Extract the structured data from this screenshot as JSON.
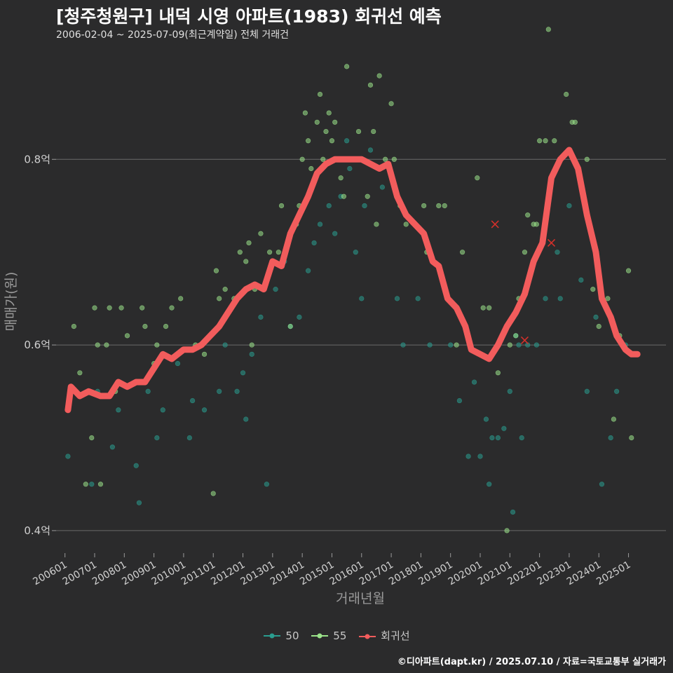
{
  "title": "[청주청원구] 내덕 시영 아파트(1983) 회귀선 예측",
  "subtitle": "2006-02-04 ~ 2025-07-09(최근계약일) 전체 거래건",
  "caption": "©디아파트(dapt.kr) / 2025.07.10 / 자료=국토교통부 실거래가",
  "colors": {
    "s50": "#2a9d8f",
    "s55": "#9be38a",
    "regression": "#f25c5c",
    "grid": "#6a6a6a",
    "outlier": "#d7302a"
  },
  "chart_data": {
    "type": "scatter",
    "xlabel": "거래년월",
    "ylabel": "매매가(원)",
    "xlim": [
      2005.7,
      2026.5
    ],
    "ylim": [
      0.375,
      0.915
    ],
    "y_ticks": [
      0.4,
      0.6,
      0.8
    ],
    "y_tick_labels": [
      "0.4억",
      "0.6억",
      "0.8억"
    ],
    "x_ticks": [
      2006,
      2007,
      2008,
      2009,
      2010,
      2011,
      2012,
      2013,
      2014,
      2015,
      2016,
      2017,
      2018,
      2019,
      2020,
      2021,
      2022,
      2023,
      2024,
      2025
    ],
    "x_tick_labels": [
      "200601",
      "200701",
      "200801",
      "200901",
      "201001",
      "201101",
      "201201",
      "201301",
      "201401",
      "201501",
      "201601",
      "201701",
      "201801",
      "201901",
      "202001",
      "202101",
      "202201",
      "202301",
      "202401",
      "202501"
    ],
    "legend": [
      "50",
      "55",
      "회귀선"
    ],
    "series": [
      {
        "name": "50",
        "points": [
          [
            2006.1,
            0.48
          ],
          [
            2006.9,
            0.45
          ],
          [
            2007.1,
            0.55
          ],
          [
            2007.6,
            0.49
          ],
          [
            2007.8,
            0.53
          ],
          [
            2008.4,
            0.47
          ],
          [
            2008.5,
            0.43
          ],
          [
            2008.8,
            0.55
          ],
          [
            2009.1,
            0.5
          ],
          [
            2009.3,
            0.53
          ],
          [
            2009.8,
            0.58
          ],
          [
            2010.2,
            0.5
          ],
          [
            2010.3,
            0.54
          ],
          [
            2010.7,
            0.53
          ],
          [
            2011.2,
            0.55
          ],
          [
            2011.4,
            0.6
          ],
          [
            2011.8,
            0.55
          ],
          [
            2012.0,
            0.57
          ],
          [
            2012.1,
            0.52
          ],
          [
            2012.3,
            0.59
          ],
          [
            2012.6,
            0.63
          ],
          [
            2012.8,
            0.45
          ],
          [
            2013.1,
            0.66
          ],
          [
            2013.4,
            0.69
          ],
          [
            2013.6,
            0.62
          ],
          [
            2013.9,
            0.63
          ],
          [
            2014.2,
            0.68
          ],
          [
            2014.4,
            0.71
          ],
          [
            2014.6,
            0.73
          ],
          [
            2014.9,
            0.75
          ],
          [
            2015.1,
            0.72
          ],
          [
            2015.3,
            0.76
          ],
          [
            2015.5,
            0.82
          ],
          [
            2015.6,
            0.79
          ],
          [
            2015.8,
            0.7
          ],
          [
            2016.0,
            0.65
          ],
          [
            2016.1,
            0.75
          ],
          [
            2016.3,
            0.81
          ],
          [
            2016.7,
            0.77
          ],
          [
            2017.2,
            0.65
          ],
          [
            2017.4,
            0.6
          ],
          [
            2017.9,
            0.65
          ],
          [
            2018.3,
            0.6
          ],
          [
            2019.0,
            0.6
          ],
          [
            2019.3,
            0.54
          ],
          [
            2019.6,
            0.48
          ],
          [
            2019.8,
            0.56
          ],
          [
            2020.0,
            0.48
          ],
          [
            2020.2,
            0.52
          ],
          [
            2020.3,
            0.45
          ],
          [
            2020.4,
            0.5
          ],
          [
            2020.6,
            0.5
          ],
          [
            2020.8,
            0.51
          ],
          [
            2021.0,
            0.55
          ],
          [
            2021.1,
            0.42
          ],
          [
            2021.2,
            0.61
          ],
          [
            2021.3,
            0.6
          ],
          [
            2021.4,
            0.5
          ],
          [
            2021.6,
            0.6
          ],
          [
            2021.9,
            0.6
          ],
          [
            2022.2,
            0.65
          ],
          [
            2022.6,
            0.7
          ],
          [
            2022.7,
            0.65
          ],
          [
            2023.0,
            0.75
          ],
          [
            2023.4,
            0.67
          ],
          [
            2023.6,
            0.55
          ],
          [
            2023.9,
            0.63
          ],
          [
            2024.1,
            0.45
          ],
          [
            2024.4,
            0.5
          ],
          [
            2024.6,
            0.55
          ],
          [
            2024.9,
            0.6
          ]
        ]
      },
      {
        "name": "55",
        "points": [
          [
            2006.3,
            0.62
          ],
          [
            2006.5,
            0.57
          ],
          [
            2006.7,
            0.45
          ],
          [
            2006.9,
            0.5
          ],
          [
            2007.0,
            0.64
          ],
          [
            2007.1,
            0.6
          ],
          [
            2007.2,
            0.45
          ],
          [
            2007.4,
            0.6
          ],
          [
            2007.5,
            0.64
          ],
          [
            2007.7,
            0.55
          ],
          [
            2007.9,
            0.64
          ],
          [
            2008.1,
            0.61
          ],
          [
            2008.6,
            0.64
          ],
          [
            2008.7,
            0.62
          ],
          [
            2009.0,
            0.58
          ],
          [
            2009.1,
            0.6
          ],
          [
            2009.4,
            0.62
          ],
          [
            2009.6,
            0.64
          ],
          [
            2009.9,
            0.65
          ],
          [
            2010.4,
            0.6
          ],
          [
            2010.7,
            0.59
          ],
          [
            2011.0,
            0.44
          ],
          [
            2011.1,
            0.68
          ],
          [
            2011.2,
            0.65
          ],
          [
            2011.4,
            0.66
          ],
          [
            2011.7,
            0.65
          ],
          [
            2011.9,
            0.7
          ],
          [
            2012.1,
            0.69
          ],
          [
            2012.2,
            0.71
          ],
          [
            2012.3,
            0.6
          ],
          [
            2012.4,
            0.66
          ],
          [
            2012.6,
            0.72
          ],
          [
            2012.9,
            0.7
          ],
          [
            2013.2,
            0.7
          ],
          [
            2013.3,
            0.75
          ],
          [
            2013.6,
            0.62
          ],
          [
            2013.8,
            0.73
          ],
          [
            2013.9,
            0.75
          ],
          [
            2014.0,
            0.8
          ],
          [
            2014.1,
            0.85
          ],
          [
            2014.2,
            0.82
          ],
          [
            2014.3,
            0.79
          ],
          [
            2014.5,
            0.84
          ],
          [
            2014.6,
            0.87
          ],
          [
            2014.7,
            0.8
          ],
          [
            2014.8,
            0.83
          ],
          [
            2014.9,
            0.85
          ],
          [
            2015.0,
            0.82
          ],
          [
            2015.1,
            0.84
          ],
          [
            2015.3,
            0.78
          ],
          [
            2015.4,
            0.76
          ],
          [
            2015.5,
            0.9
          ],
          [
            2015.7,
            0.8
          ],
          [
            2015.9,
            0.83
          ],
          [
            2016.2,
            0.76
          ],
          [
            2016.3,
            0.88
          ],
          [
            2016.4,
            0.83
          ],
          [
            2016.5,
            0.73
          ],
          [
            2016.6,
            0.89
          ],
          [
            2016.8,
            0.8
          ],
          [
            2017.0,
            0.86
          ],
          [
            2017.1,
            0.8
          ],
          [
            2017.3,
            0.75
          ],
          [
            2017.5,
            0.73
          ],
          [
            2017.8,
            0.73
          ],
          [
            2018.1,
            0.75
          ],
          [
            2018.2,
            0.7
          ],
          [
            2018.6,
            0.75
          ],
          [
            2018.8,
            0.75
          ],
          [
            2019.2,
            0.6
          ],
          [
            2019.4,
            0.7
          ],
          [
            2019.9,
            0.78
          ],
          [
            2020.1,
            0.64
          ],
          [
            2020.3,
            0.64
          ],
          [
            2020.6,
            0.57
          ],
          [
            2020.9,
            0.4
          ],
          [
            2021.0,
            0.6
          ],
          [
            2021.2,
            0.61
          ],
          [
            2021.3,
            0.65
          ],
          [
            2021.5,
            0.7
          ],
          [
            2021.6,
            0.74
          ],
          [
            2021.8,
            0.73
          ],
          [
            2021.9,
            0.73
          ],
          [
            2022.0,
            0.82
          ],
          [
            2022.2,
            0.82
          ],
          [
            2022.3,
            0.94
          ],
          [
            2022.5,
            0.82
          ],
          [
            2022.9,
            0.87
          ],
          [
            2023.1,
            0.84
          ],
          [
            2023.2,
            0.84
          ],
          [
            2023.6,
            0.8
          ],
          [
            2023.8,
            0.66
          ],
          [
            2024.0,
            0.62
          ],
          [
            2024.3,
            0.65
          ],
          [
            2024.5,
            0.52
          ],
          [
            2024.7,
            0.61
          ],
          [
            2025.0,
            0.68
          ],
          [
            2025.1,
            0.5
          ]
        ]
      }
    ],
    "regression": [
      [
        2006.1,
        0.53
      ],
      [
        2006.2,
        0.555
      ],
      [
        2006.5,
        0.545
      ],
      [
        2006.8,
        0.55
      ],
      [
        2007.2,
        0.545
      ],
      [
        2007.5,
        0.545
      ],
      [
        2007.8,
        0.56
      ],
      [
        2008.1,
        0.555
      ],
      [
        2008.4,
        0.56
      ],
      [
        2008.7,
        0.56
      ],
      [
        2009.0,
        0.575
      ],
      [
        2009.3,
        0.59
      ],
      [
        2009.6,
        0.585
      ],
      [
        2010.0,
        0.595
      ],
      [
        2010.3,
        0.595
      ],
      [
        2010.6,
        0.6
      ],
      [
        2010.9,
        0.61
      ],
      [
        2011.2,
        0.62
      ],
      [
        2011.5,
        0.635
      ],
      [
        2011.8,
        0.65
      ],
      [
        2012.1,
        0.66
      ],
      [
        2012.4,
        0.665
      ],
      [
        2012.7,
        0.66
      ],
      [
        2013.0,
        0.69
      ],
      [
        2013.3,
        0.685
      ],
      [
        2013.6,
        0.72
      ],
      [
        2013.9,
        0.74
      ],
      [
        2014.2,
        0.76
      ],
      [
        2014.5,
        0.785
      ],
      [
        2014.8,
        0.795
      ],
      [
        2015.1,
        0.8
      ],
      [
        2015.4,
        0.8
      ],
      [
        2015.7,
        0.8
      ],
      [
        2016.0,
        0.8
      ],
      [
        2016.3,
        0.795
      ],
      [
        2016.6,
        0.79
      ],
      [
        2016.9,
        0.795
      ],
      [
        2017.2,
        0.76
      ],
      [
        2017.5,
        0.74
      ],
      [
        2017.8,
        0.73
      ],
      [
        2018.1,
        0.72
      ],
      [
        2018.4,
        0.69
      ],
      [
        2018.6,
        0.685
      ],
      [
        2018.9,
        0.65
      ],
      [
        2019.2,
        0.64
      ],
      [
        2019.5,
        0.62
      ],
      [
        2019.7,
        0.595
      ],
      [
        2020.0,
        0.59
      ],
      [
        2020.3,
        0.585
      ],
      [
        2020.6,
        0.6
      ],
      [
        2020.9,
        0.62
      ],
      [
        2021.2,
        0.635
      ],
      [
        2021.5,
        0.655
      ],
      [
        2021.8,
        0.69
      ],
      [
        2022.1,
        0.71
      ],
      [
        2022.4,
        0.78
      ],
      [
        2022.7,
        0.8
      ],
      [
        2023.0,
        0.81
      ],
      [
        2023.3,
        0.79
      ],
      [
        2023.6,
        0.74
      ],
      [
        2023.9,
        0.7
      ],
      [
        2024.1,
        0.65
      ],
      [
        2024.4,
        0.63
      ],
      [
        2024.6,
        0.61
      ],
      [
        2024.9,
        0.595
      ],
      [
        2025.1,
        0.59
      ],
      [
        2025.3,
        0.59
      ]
    ],
    "outliers": [
      [
        2020.5,
        0.73
      ],
      [
        2021.5,
        0.605
      ],
      [
        2022.4,
        0.71
      ]
    ]
  }
}
